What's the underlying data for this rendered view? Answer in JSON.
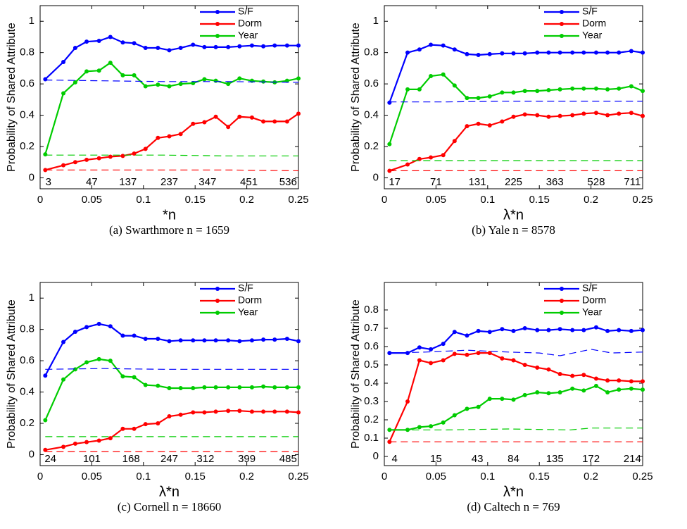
{
  "chart_data": [
    {
      "type": "line",
      "caption": "(a) Swarthmore n = 1659",
      "xlabel": "*n",
      "ylabel": "Probability of Shared Attribute",
      "x": [
        0.005,
        0.0225,
        0.034,
        0.045,
        0.057,
        0.068,
        0.08,
        0.091,
        0.102,
        0.114,
        0.125,
        0.136,
        0.148,
        0.159,
        0.17,
        0.182,
        0.193,
        0.205,
        0.216,
        0.227,
        0.239,
        0.25
      ],
      "xlim": [
        0,
        0.25
      ],
      "xticks": [
        0,
        0.05,
        0.1,
        0.15,
        0.2,
        0.25
      ],
      "ylim": [
        -0.07,
        1.1
      ],
      "yticks": [
        0,
        0.2,
        0.4,
        0.6,
        0.8,
        1
      ],
      "legend": "upper right",
      "series": [
        {
          "name": "S/F",
          "color": "#0000ff",
          "values": [
            0.63,
            0.74,
            0.83,
            0.87,
            0.875,
            0.9,
            0.865,
            0.86,
            0.83,
            0.83,
            0.815,
            0.83,
            0.85,
            0.835,
            0.835,
            0.835,
            0.84,
            0.845,
            0.84,
            0.845,
            0.845,
            0.845
          ]
        },
        {
          "name": "Dorm",
          "color": "#ff0000",
          "values": [
            0.05,
            0.08,
            0.1,
            0.115,
            0.125,
            0.135,
            0.14,
            0.155,
            0.185,
            0.255,
            0.265,
            0.28,
            0.345,
            0.355,
            0.39,
            0.325,
            0.39,
            0.385,
            0.36,
            0.36,
            0.36,
            0.41
          ]
        },
        {
          "name": "Year",
          "color": "#00cc00",
          "values": [
            0.15,
            0.54,
            0.61,
            0.68,
            0.685,
            0.735,
            0.655,
            0.655,
            0.585,
            0.595,
            0.585,
            0.6,
            0.605,
            0.63,
            0.62,
            0.6,
            0.635,
            0.62,
            0.615,
            0.61,
            0.62,
            0.635
          ]
        },
        {
          "style": "dashed",
          "color": "#0000ff",
          "x": [
            0.005,
            0.06,
            0.12,
            0.18,
            0.25
          ],
          "values": [
            0.625,
            0.62,
            0.615,
            0.615,
            0.61
          ]
        },
        {
          "style": "dashed",
          "color": "#ff0000",
          "x": [
            0.005,
            0.06,
            0.12,
            0.18,
            0.25
          ],
          "values": [
            0.05,
            0.05,
            0.05,
            0.05,
            0.045
          ]
        },
        {
          "style": "dashed",
          "color": "#00cc00",
          "x": [
            0.005,
            0.06,
            0.12,
            0.18,
            0.25
          ],
          "values": [
            0.145,
            0.145,
            0.145,
            0.14,
            0.14
          ]
        }
      ],
      "bottom_labels": {
        "x": [
          0.008,
          0.05,
          0.085,
          0.125,
          0.162,
          0.202,
          0.24
        ],
        "labels": [
          3,
          47,
          137,
          237,
          347,
          451,
          536
        ]
      }
    },
    {
      "type": "line",
      "caption": "(b) Yale n = 8578",
      "xlabel": "λ*n",
      "ylabel": "Probability of Shared Attribute",
      "x": [
        0.005,
        0.0225,
        0.034,
        0.045,
        0.057,
        0.068,
        0.08,
        0.091,
        0.102,
        0.114,
        0.125,
        0.136,
        0.148,
        0.159,
        0.17,
        0.182,
        0.193,
        0.205,
        0.216,
        0.227,
        0.239,
        0.25
      ],
      "xlim": [
        0,
        0.25
      ],
      "xticks": [
        0,
        0.05,
        0.1,
        0.15,
        0.2,
        0.25
      ],
      "ylim": [
        -0.07,
        1.1
      ],
      "yticks": [
        0,
        0.2,
        0.4,
        0.6,
        0.8,
        1
      ],
      "legend": "upper right",
      "series": [
        {
          "name": "S/F",
          "color": "#0000ff",
          "values": [
            0.48,
            0.8,
            0.82,
            0.85,
            0.845,
            0.82,
            0.79,
            0.785,
            0.79,
            0.795,
            0.795,
            0.795,
            0.8,
            0.8,
            0.8,
            0.8,
            0.8,
            0.8,
            0.8,
            0.8,
            0.81,
            0.8
          ]
        },
        {
          "name": "Dorm",
          "color": "#ff0000",
          "values": [
            0.045,
            0.085,
            0.12,
            0.13,
            0.145,
            0.235,
            0.33,
            0.345,
            0.335,
            0.36,
            0.39,
            0.405,
            0.4,
            0.39,
            0.395,
            0.4,
            0.41,
            0.415,
            0.4,
            0.41,
            0.415,
            0.395
          ]
        },
        {
          "name": "Year",
          "color": "#00cc00",
          "values": [
            0.215,
            0.565,
            0.565,
            0.65,
            0.66,
            0.59,
            0.51,
            0.51,
            0.52,
            0.545,
            0.545,
            0.555,
            0.555,
            0.56,
            0.565,
            0.57,
            0.57,
            0.57,
            0.565,
            0.57,
            0.585,
            0.555
          ]
        },
        {
          "style": "dashed",
          "color": "#0000ff",
          "x": [
            0.005,
            0.06,
            0.12,
            0.18,
            0.25
          ],
          "values": [
            0.485,
            0.485,
            0.49,
            0.49,
            0.49
          ]
        },
        {
          "style": "dashed",
          "color": "#ff0000",
          "x": [
            0.005,
            0.06,
            0.12,
            0.18,
            0.25
          ],
          "values": [
            0.045,
            0.045,
            0.045,
            0.045,
            0.045
          ]
        },
        {
          "style": "dashed",
          "color": "#00cc00",
          "x": [
            0.005,
            0.06,
            0.12,
            0.18,
            0.25
          ],
          "values": [
            0.11,
            0.11,
            0.11,
            0.11,
            0.11
          ]
        }
      ],
      "bottom_labels": {
        "x": [
          0.01,
          0.05,
          0.09,
          0.125,
          0.165,
          0.205,
          0.24
        ],
        "labels": [
          17,
          71,
          131,
          225,
          363,
          528,
          711
        ]
      }
    },
    {
      "type": "line",
      "caption": "(c) Cornell n = 18660",
      "xlabel": "λ*n",
      "ylabel": "Probability of Shared Attribute",
      "x": [
        0.005,
        0.0225,
        0.034,
        0.045,
        0.057,
        0.068,
        0.08,
        0.091,
        0.102,
        0.114,
        0.125,
        0.136,
        0.148,
        0.159,
        0.17,
        0.182,
        0.193,
        0.205,
        0.216,
        0.227,
        0.239,
        0.25
      ],
      "xlim": [
        0,
        0.25
      ],
      "xticks": [
        0,
        0.05,
        0.1,
        0.15,
        0.2,
        0.25
      ],
      "ylim": [
        -0.07,
        1.1
      ],
      "yticks": [
        0,
        0.2,
        0.4,
        0.6,
        0.8,
        1
      ],
      "legend": "upper right",
      "series": [
        {
          "name": "S/F",
          "color": "#0000ff",
          "values": [
            0.505,
            0.72,
            0.785,
            0.815,
            0.835,
            0.82,
            0.76,
            0.76,
            0.74,
            0.74,
            0.725,
            0.73,
            0.73,
            0.73,
            0.73,
            0.73,
            0.725,
            0.73,
            0.735,
            0.735,
            0.74,
            0.725
          ]
        },
        {
          "name": "Dorm",
          "color": "#ff0000",
          "values": [
            0.03,
            0.05,
            0.07,
            0.08,
            0.09,
            0.105,
            0.165,
            0.165,
            0.195,
            0.2,
            0.245,
            0.255,
            0.27,
            0.27,
            0.275,
            0.28,
            0.28,
            0.275,
            0.275,
            0.275,
            0.275,
            0.27
          ]
        },
        {
          "name": "Year",
          "color": "#00cc00",
          "values": [
            0.22,
            0.48,
            0.545,
            0.59,
            0.61,
            0.6,
            0.5,
            0.495,
            0.445,
            0.44,
            0.425,
            0.425,
            0.425,
            0.43,
            0.43,
            0.43,
            0.43,
            0.43,
            0.435,
            0.43,
            0.43,
            0.43
          ]
        },
        {
          "style": "dashed",
          "color": "#0000ff",
          "x": [
            0.005,
            0.06,
            0.12,
            0.18,
            0.25
          ],
          "values": [
            0.545,
            0.55,
            0.545,
            0.545,
            0.545
          ]
        },
        {
          "style": "dashed",
          "color": "#ff0000",
          "x": [
            0.005,
            0.06,
            0.12,
            0.18,
            0.25
          ],
          "values": [
            0.02,
            0.02,
            0.02,
            0.02,
            0.02
          ]
        },
        {
          "style": "dashed",
          "color": "#00cc00",
          "x": [
            0.005,
            0.06,
            0.12,
            0.18,
            0.25
          ],
          "values": [
            0.115,
            0.115,
            0.115,
            0.115,
            0.115
          ]
        }
      ],
      "bottom_labels": {
        "x": [
          0.01,
          0.05,
          0.088,
          0.125,
          0.16,
          0.2,
          0.24
        ],
        "labels": [
          24,
          101,
          168,
          247,
          312,
          399,
          485
        ]
      }
    },
    {
      "type": "line",
      "caption": "(d) Caltech n = 769",
      "xlabel": "λ*n",
      "ylabel": "Probability of Shared Attribute",
      "x": [
        0.005,
        0.0225,
        0.034,
        0.045,
        0.057,
        0.068,
        0.08,
        0.091,
        0.102,
        0.114,
        0.125,
        0.136,
        0.148,
        0.159,
        0.17,
        0.182,
        0.193,
        0.205,
        0.216,
        0.227,
        0.239,
        0.25
      ],
      "xlim": [
        0,
        0.25
      ],
      "xticks": [
        0,
        0.05,
        0.1,
        0.15,
        0.2,
        0.25
      ],
      "ylim": [
        -0.05,
        0.95
      ],
      "yticks": [
        0,
        0.1,
        0.2,
        0.3,
        0.4,
        0.5,
        0.6,
        0.7,
        0.8
      ],
      "legend": "upper right",
      "series": [
        {
          "name": "S/F",
          "color": "#0000ff",
          "values": [
            0.565,
            0.565,
            0.595,
            0.585,
            0.615,
            0.68,
            0.66,
            0.685,
            0.68,
            0.695,
            0.685,
            0.7,
            0.69,
            0.69,
            0.695,
            0.69,
            0.69,
            0.705,
            0.685,
            0.69,
            0.685,
            0.69
          ]
        },
        {
          "name": "Dorm",
          "color": "#ff0000",
          "values": [
            0.08,
            0.3,
            0.525,
            0.51,
            0.525,
            0.56,
            0.555,
            0.565,
            0.565,
            0.535,
            0.525,
            0.5,
            0.485,
            0.475,
            0.45,
            0.44,
            0.445,
            0.425,
            0.415,
            0.415,
            0.41,
            0.41
          ]
        },
        {
          "name": "Year",
          "color": "#00cc00",
          "values": [
            0.145,
            0.145,
            0.16,
            0.165,
            0.185,
            0.225,
            0.26,
            0.27,
            0.315,
            0.315,
            0.31,
            0.335,
            0.35,
            0.345,
            0.35,
            0.37,
            0.36,
            0.385,
            0.35,
            0.365,
            0.37,
            0.365
          ]
        },
        {
          "style": "dashed",
          "color": "#0000ff",
          "x": [
            0.005,
            0.04,
            0.08,
            0.12,
            0.15,
            0.17,
            0.2,
            0.22,
            0.25
          ],
          "values": [
            0.565,
            0.57,
            0.58,
            0.57,
            0.565,
            0.55,
            0.585,
            0.565,
            0.57
          ]
        },
        {
          "style": "dashed",
          "color": "#ff0000",
          "x": [
            0.005,
            0.06,
            0.12,
            0.18,
            0.25
          ],
          "values": [
            0.08,
            0.08,
            0.08,
            0.08,
            0.08
          ]
        },
        {
          "style": "dashed",
          "color": "#00cc00",
          "x": [
            0.005,
            0.06,
            0.12,
            0.18,
            0.2,
            0.25
          ],
          "values": [
            0.145,
            0.145,
            0.15,
            0.145,
            0.155,
            0.155
          ]
        }
      ],
      "bottom_labels": {
        "x": [
          0.01,
          0.05,
          0.09,
          0.125,
          0.165,
          0.2,
          0.24
        ],
        "labels": [
          4,
          15,
          43,
          84,
          135,
          172,
          214
        ]
      }
    }
  ]
}
